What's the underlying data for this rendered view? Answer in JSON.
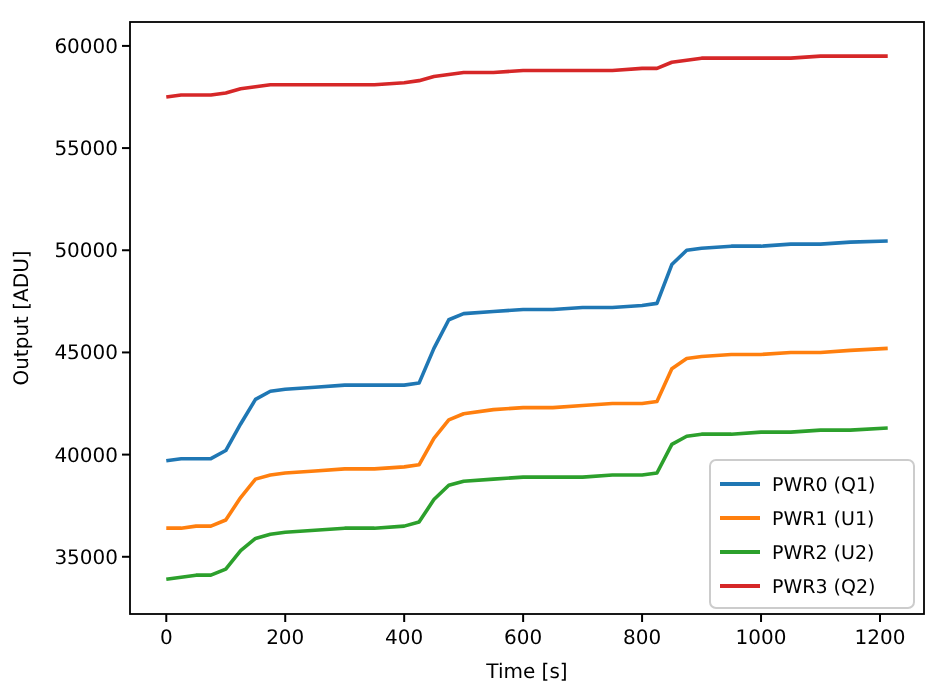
{
  "chart_data": {
    "type": "line",
    "xlabel": "Time [s]",
    "ylabel": "Output [ADU]",
    "x": [
      0,
      25,
      50,
      75,
      100,
      125,
      150,
      175,
      200,
      250,
      300,
      350,
      400,
      425,
      450,
      475,
      500,
      550,
      600,
      650,
      700,
      750,
      800,
      825,
      850,
      875,
      900,
      950,
      1000,
      1050,
      1100,
      1150,
      1213
    ],
    "series": [
      {
        "name": "PWR0 (Q1)",
        "color": "#1f77b4",
        "values": [
          39700,
          39800,
          39800,
          39800,
          40200,
          41500,
          42700,
          43100,
          43200,
          43300,
          43400,
          43400,
          43400,
          43500,
          45200,
          46600,
          46900,
          47000,
          47100,
          47100,
          47200,
          47200,
          47300,
          47400,
          49300,
          50000,
          50100,
          50200,
          50200,
          50300,
          50300,
          50400,
          50450
        ]
      },
      {
        "name": "PWR1 (U1)",
        "color": "#ff7f0e",
        "values": [
          36400,
          36400,
          36500,
          36500,
          36800,
          37900,
          38800,
          39000,
          39100,
          39200,
          39300,
          39300,
          39400,
          39500,
          40800,
          41700,
          42000,
          42200,
          42300,
          42300,
          42400,
          42500,
          42500,
          42600,
          44200,
          44700,
          44800,
          44900,
          44900,
          45000,
          45000,
          45100,
          45200
        ]
      },
      {
        "name": "PWR2 (U2)",
        "color": "#2ca02c",
        "values": [
          33900,
          34000,
          34100,
          34100,
          34400,
          35300,
          35900,
          36100,
          36200,
          36300,
          36400,
          36400,
          36500,
          36700,
          37800,
          38500,
          38700,
          38800,
          38900,
          38900,
          38900,
          39000,
          39000,
          39100,
          40500,
          40900,
          41000,
          41000,
          41100,
          41100,
          41200,
          41200,
          41300
        ]
      },
      {
        "name": "PWR3 (Q2)",
        "color": "#d62728",
        "values": [
          57500,
          57600,
          57600,
          57600,
          57700,
          57900,
          58000,
          58100,
          58100,
          58100,
          58100,
          58100,
          58200,
          58300,
          58500,
          58600,
          58700,
          58700,
          58800,
          58800,
          58800,
          58800,
          58900,
          58900,
          59200,
          59300,
          59400,
          59400,
          59400,
          59400,
          59500,
          59500,
          59500
        ]
      }
    ],
    "xlim": [
      -61,
      1274
    ],
    "xticks": [
      0,
      200,
      400,
      600,
      800,
      1000,
      1200
    ],
    "ylim": [
      32200,
      61170
    ],
    "yticks": [
      35000,
      40000,
      45000,
      50000,
      55000,
      60000
    ],
    "legend": "bottom right",
    "grid": false,
    "marker": "none",
    "line_style": "solid"
  }
}
